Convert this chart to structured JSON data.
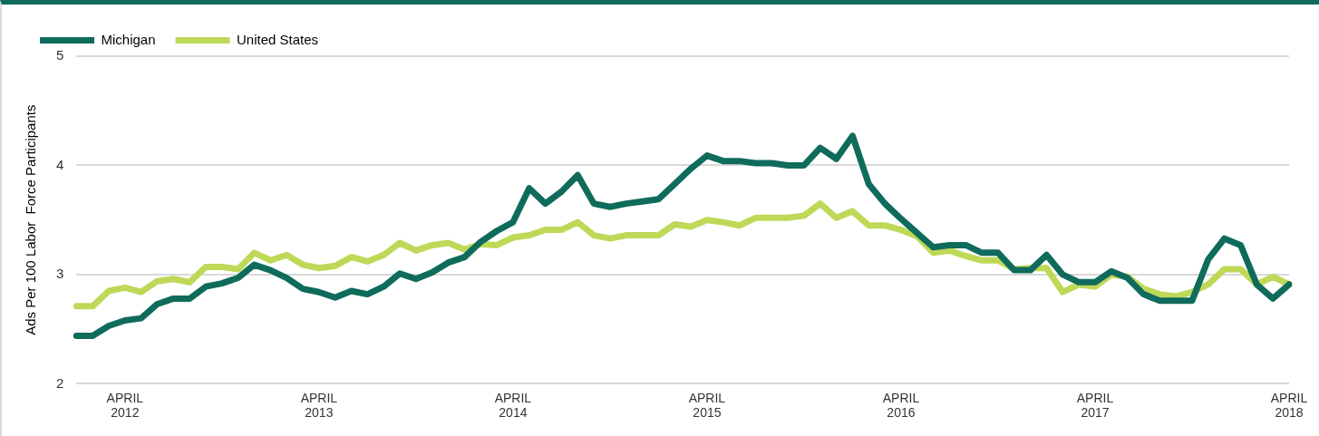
{
  "chart_data": {
    "type": "line",
    "ylabel": "Ads Per 100 Labor  Force Participants",
    "categories": [
      null,
      null,
      null,
      "APRIL 2012",
      null,
      null,
      null,
      null,
      null,
      null,
      null,
      null,
      null,
      null,
      null,
      "APRIL 2013",
      null,
      null,
      null,
      null,
      null,
      null,
      null,
      null,
      null,
      null,
      null,
      "APRIL 2014",
      null,
      null,
      null,
      null,
      null,
      null,
      null,
      null,
      null,
      null,
      null,
      "APRIL 2015",
      null,
      null,
      null,
      null,
      null,
      null,
      null,
      null,
      null,
      null,
      null,
      "APRIL 2016",
      null,
      null,
      null,
      null,
      null,
      null,
      null,
      null,
      null,
      null,
      null,
      "APRIL 2017",
      null,
      null,
      null,
      null,
      null,
      null,
      null,
      null,
      null,
      null,
      null,
      "APRIL 2018"
    ],
    "series": [
      {
        "name": "Michigan",
        "color": "#0f6b5c",
        "values": [
          2.44,
          2.44,
          2.53,
          2.58,
          2.6,
          2.73,
          2.78,
          2.78,
          2.89,
          2.92,
          2.97,
          3.09,
          3.04,
          2.97,
          2.87,
          2.84,
          2.79,
          2.85,
          2.82,
          2.89,
          3.01,
          2.96,
          3.02,
          3.11,
          3.16,
          3.3,
          3.4,
          3.48,
          3.79,
          3.65,
          3.76,
          3.91,
          3.65,
          3.62,
          3.65,
          3.67,
          3.69,
          3.83,
          3.97,
          4.09,
          4.04,
          4.04,
          4.02,
          4.02,
          4.0,
          4.0,
          4.16,
          4.06,
          4.27,
          3.83,
          3.65,
          3.51,
          3.38,
          3.25,
          3.27,
          3.27,
          3.2,
          3.2,
          3.04,
          3.04,
          3.18,
          3.0,
          2.93,
          2.93,
          3.03,
          2.97,
          2.82,
          2.76,
          2.76,
          2.76,
          3.14,
          3.33,
          3.27,
          2.91,
          2.78,
          2.91
        ]
      },
      {
        "name": "United States",
        "color": "#bed957",
        "values": [
          2.71,
          2.71,
          2.85,
          2.88,
          2.84,
          2.94,
          2.96,
          2.93,
          3.07,
          3.07,
          3.05,
          3.2,
          3.13,
          3.18,
          3.09,
          3.06,
          3.08,
          3.16,
          3.12,
          3.18,
          3.29,
          3.22,
          3.27,
          3.29,
          3.23,
          3.28,
          3.27,
          3.34,
          3.36,
          3.41,
          3.41,
          3.48,
          3.36,
          3.33,
          3.36,
          3.36,
          3.36,
          3.46,
          3.44,
          3.5,
          3.48,
          3.45,
          3.52,
          3.52,
          3.52,
          3.54,
          3.65,
          3.52,
          3.58,
          3.45,
          3.45,
          3.41,
          3.35,
          3.2,
          3.22,
          3.17,
          3.13,
          3.13,
          3.05,
          3.06,
          3.06,
          2.84,
          2.91,
          2.89,
          3.0,
          2.98,
          2.87,
          2.82,
          2.8,
          2.84,
          2.91,
          3.05,
          3.05,
          2.91,
          2.98,
          2.91
        ]
      }
    ],
    "ylim": [
      2,
      5
    ],
    "yticks": [
      2,
      3,
      4,
      5
    ],
    "grid": "y",
    "legend": "top left",
    "marker": "none",
    "line_style": "solid"
  }
}
